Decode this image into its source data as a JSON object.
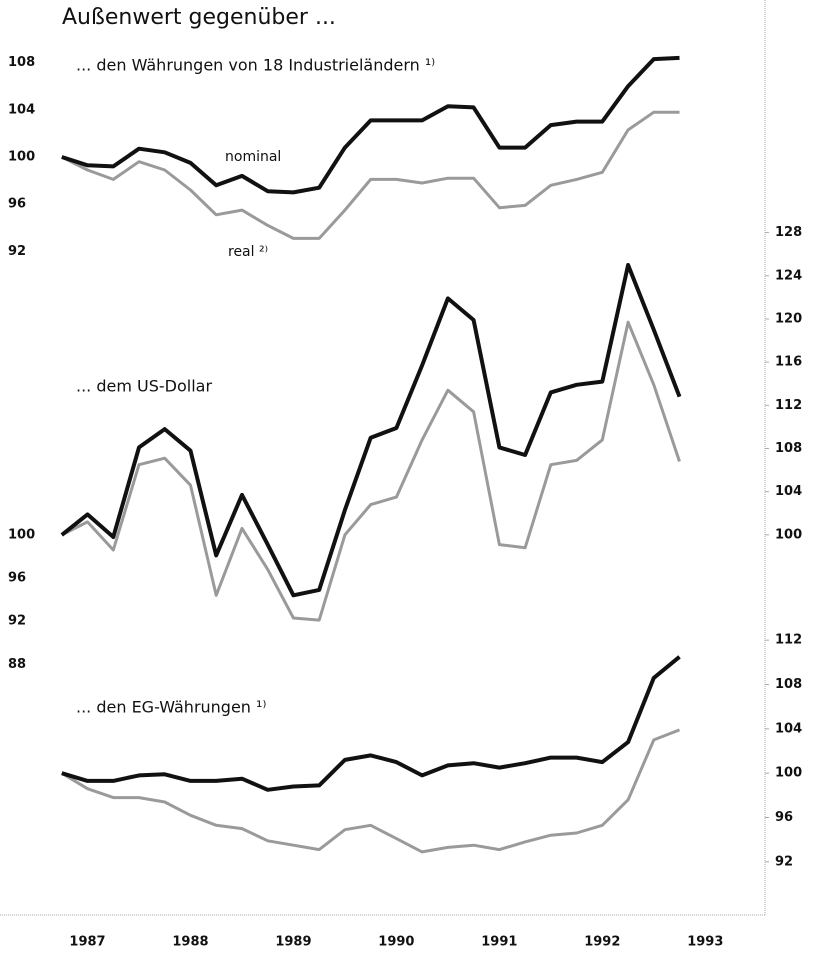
{
  "chart_data": {
    "type": "line",
    "title": "Außenwert gegenüber ...",
    "x": [
      1986.75,
      1987,
      1987.25,
      1987.5,
      1987.75,
      1988,
      1988.25,
      1988.5,
      1988.75,
      1989,
      1989.25,
      1989.5,
      1989.75,
      1990,
      1990.25,
      1990.5,
      1990.75,
      1991,
      1991.25,
      1991.5,
      1991.75,
      1992,
      1992.25,
      1992.5,
      1992.75
    ],
    "xlim": [
      1986.15,
      1993.58
    ],
    "xticks": [
      1987,
      1988,
      1989,
      1990,
      1991,
      1992,
      1993
    ],
    "grid": false,
    "panels": [
      {
        "subtitle": "... den Währungen von 18 Industrieländern ¹⁾",
        "ylim": [
          90,
          110
        ],
        "yticks": [
          92,
          96,
          100,
          104,
          108
        ],
        "series": [
          {
            "name": "nominal",
            "color": "#111111",
            "values": [
              100,
              99.3,
              99.2,
              100.7,
              100.4,
              99.5,
              97.6,
              98.4,
              97.1,
              97.0,
              97.4,
              100.8,
              103.1,
              103.1,
              103.1,
              104.3,
              104.2,
              100.8,
              100.8,
              102.7,
              103.0,
              103.0,
              106.0,
              108.3,
              108.4
            ]
          },
          {
            "name": "real ²⁾",
            "color": "#9a9a9a",
            "values": [
              100,
              98.9,
              98.1,
              99.6,
              98.9,
              97.2,
              95.1,
              95.5,
              94.2,
              93.1,
              93.1,
              95.5,
              98.1,
              98.1,
              97.8,
              98.2,
              98.2,
              95.7,
              95.9,
              97.6,
              98.1,
              98.7,
              102.3,
              103.8,
              103.8
            ]
          }
        ]
      },
      {
        "subtitle": "... dem US-Dollar",
        "ylim": [
          86,
          130
        ],
        "yticks": [
          88,
          92,
          96,
          100
        ],
        "y2lim": [
          86,
          130
        ],
        "y2ticks": [
          100,
          104,
          108,
          112,
          116,
          120,
          124,
          128
        ],
        "series": [
          {
            "color": "#111111",
            "values": [
              100,
              101.9,
              99.8,
              108.1,
              109.8,
              107.8,
              98.1,
              103.7,
              99.1,
              94.4,
              94.9,
              102.3,
              109.0,
              109.9,
              115.7,
              121.9,
              119.9,
              108.1,
              107.4,
              113.2,
              113.9,
              114.2,
              125.0,
              119.0,
              112.8
            ]
          },
          {
            "color": "#9a9a9a",
            "values": [
              100,
              101.2,
              98.6,
              106.5,
              107.1,
              104.6,
              94.4,
              100.6,
              96.8,
              92.3,
              92.1,
              100,
              102.8,
              103.5,
              108.8,
              113.4,
              111.4,
              99.1,
              98.8,
              106.5,
              106.9,
              108.8,
              119.7,
              113.9,
              106.8
            ]
          }
        ]
      },
      {
        "subtitle": "... den EG-Währungen ¹⁾",
        "y2lim": [
          90,
          114
        ],
        "y2ticks": [
          92,
          96,
          100,
          104,
          108,
          112
        ],
        "series": [
          {
            "color": "#111111",
            "axis": "y2",
            "values": [
              100,
              99.3,
              99.3,
              99.8,
              99.9,
              99.3,
              99.3,
              99.5,
              98.5,
              98.8,
              98.9,
              101.2,
              101.6,
              101.0,
              99.8,
              100.7,
              100.9,
              100.5,
              100.9,
              101.4,
              101.4,
              101.0,
              102.8,
              108.6,
              110.5
            ]
          },
          {
            "color": "#9a9a9a",
            "axis": "y2",
            "values": [
              100,
              98.6,
              97.8,
              97.8,
              97.4,
              96.2,
              95.3,
              95.0,
              93.9,
              93.5,
              93.1,
              94.9,
              95.3,
              94.1,
              92.9,
              93.3,
              93.5,
              93.1,
              93.8,
              94.4,
              94.6,
              95.3,
              97.6,
              103.0,
              103.9
            ]
          }
        ]
      }
    ]
  }
}
